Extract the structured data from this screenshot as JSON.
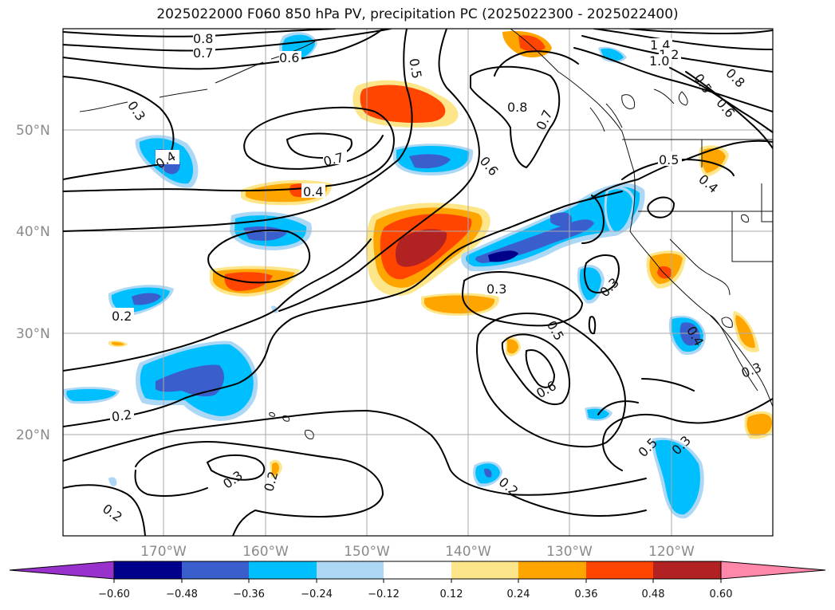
{
  "title": "2025022000 F060 850 hPa PV, precipitation PC (2025022300 - 2025022400)",
  "map": {
    "lat_ticks": [
      "50°N",
      "40°N",
      "30°N",
      "20°N"
    ],
    "lon_ticks": [
      "170°W",
      "160°W",
      "150°W",
      "140°W",
      "130°W",
      "120°W"
    ],
    "contour_labels": [
      {
        "id": "c1",
        "text": "0.8"
      },
      {
        "id": "c2",
        "text": "0.7"
      },
      {
        "id": "c3",
        "text": "0.6"
      },
      {
        "id": "c4",
        "text": "0.3"
      },
      {
        "id": "c5",
        "text": "0.4"
      },
      {
        "id": "c6",
        "text": "0.7"
      },
      {
        "id": "c7",
        "text": "0.4"
      },
      {
        "id": "c8",
        "text": "0.5"
      },
      {
        "id": "c9",
        "text": "0.8"
      },
      {
        "id": "c10",
        "text": "0.7"
      },
      {
        "id": "c11",
        "text": "0.6"
      },
      {
        "id": "c12",
        "text": "1.4"
      },
      {
        "id": "c13",
        "text": "1.2"
      },
      {
        "id": "c14",
        "text": "1.0"
      },
      {
        "id": "c15",
        "text": "0.5"
      },
      {
        "id": "c16",
        "text": "0.8"
      },
      {
        "id": "c17",
        "text": "0.6"
      },
      {
        "id": "c18",
        "text": "0.5"
      },
      {
        "id": "c19",
        "text": "0.4"
      },
      {
        "id": "c20",
        "text": "0.3"
      },
      {
        "id": "c21",
        "text": "0.3"
      },
      {
        "id": "c22",
        "text": "0.5"
      },
      {
        "id": "c23",
        "text": "0.6"
      },
      {
        "id": "c24",
        "text": "0.4"
      },
      {
        "id": "c25",
        "text": "0.2"
      },
      {
        "id": "c26",
        "text": "0.2"
      },
      {
        "id": "c27",
        "text": "0.5"
      },
      {
        "id": "c28",
        "text": "0.3"
      },
      {
        "id": "c29",
        "text": "0.3"
      },
      {
        "id": "c30",
        "text": "0.2"
      },
      {
        "id": "c31",
        "text": "0.2"
      },
      {
        "id": "c32",
        "text": "0.2"
      },
      {
        "id": "c33",
        "text": "0.3"
      }
    ]
  },
  "colorbar": {
    "labels": [
      "−0.60",
      "−0.48",
      "−0.36",
      "−0.24",
      "−0.12",
      "0.12",
      "0.24",
      "0.36",
      "0.48",
      "0.60"
    ],
    "colors": [
      "#9932cc",
      "#00008b",
      "#3a5fcd",
      "#00bfff",
      "#add8f5",
      "#ffffff",
      "#fde68a",
      "#ffa500",
      "#ff4500",
      "#b22222",
      "#ff88aa"
    ]
  }
}
